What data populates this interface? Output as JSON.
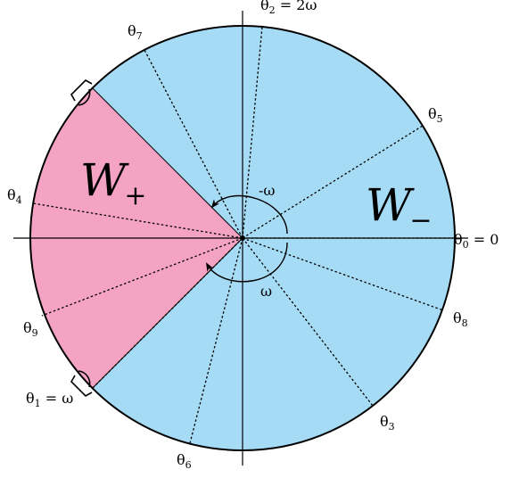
{
  "diagram": {
    "colors": {
      "w_minus_region": "#a6dbf5",
      "w_plus_region": "#f5a3c3",
      "lines": "#000000"
    },
    "regions": {
      "w_plus": {
        "base": "W",
        "sub": "+"
      },
      "w_minus": {
        "base": "W",
        "sub": "−"
      }
    },
    "angles": [
      {
        "base": "θ",
        "sub": "0",
        "suffix": " = 0"
      },
      {
        "base": "θ",
        "sub": "1",
        "suffix": " = ω"
      },
      {
        "base": "θ",
        "sub": "2",
        "suffix": " = 2ω"
      },
      {
        "base": "θ",
        "sub": "3",
        "suffix": ""
      },
      {
        "base": "θ",
        "sub": "4",
        "suffix": ""
      },
      {
        "base": "θ",
        "sub": "5",
        "suffix": ""
      },
      {
        "base": "θ",
        "sub": "6",
        "suffix": ""
      },
      {
        "base": "θ",
        "sub": "7",
        "suffix": ""
      },
      {
        "base": "θ",
        "sub": "8",
        "suffix": ""
      },
      {
        "base": "θ",
        "sub": "9",
        "suffix": ""
      }
    ],
    "rotations": {
      "negative": "-ω",
      "positive": "ω"
    }
  }
}
